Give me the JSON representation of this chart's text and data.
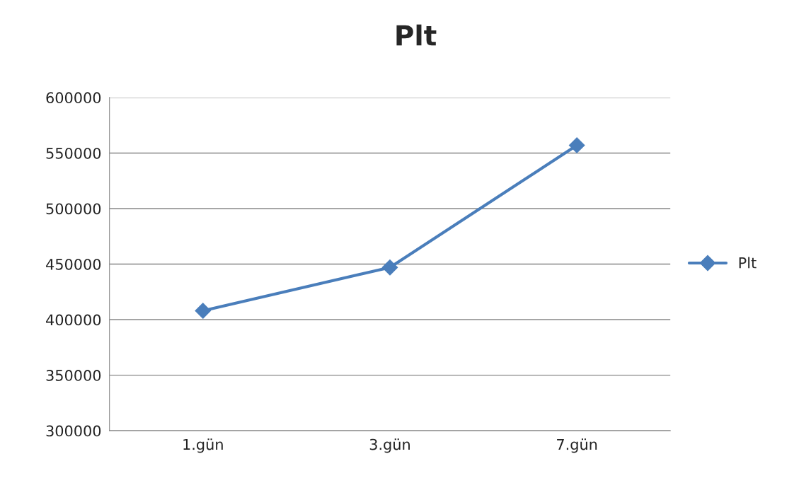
{
  "chart_data": {
    "type": "line",
    "title": "Plt",
    "categories": [
      "1.gün",
      "3.gün",
      "7.gün"
    ],
    "series": [
      {
        "name": "Plt",
        "color": "#4a7ebb",
        "values": [
          408000,
          447000,
          557000
        ]
      }
    ],
    "ylim": [
      300000,
      600000
    ],
    "yticks": [
      300000,
      350000,
      400000,
      450000,
      500000,
      550000,
      600000
    ],
    "grid": "y",
    "legend": "right",
    "marker": "diamond",
    "line_style": "solid"
  }
}
